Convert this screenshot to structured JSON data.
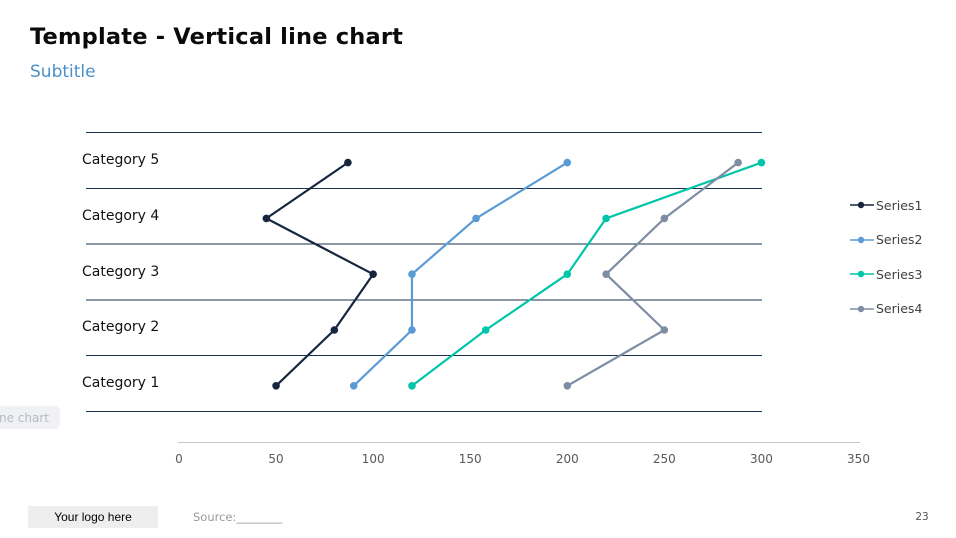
{
  "slide": {
    "title": "Template - Vertical line chart",
    "subtitle": "Subtitle",
    "tooltip_fragment": "ne chart",
    "footer": {
      "logo_label": "Your logo here",
      "source_label": "Source:________",
      "page_number": "23"
    }
  },
  "chart_data": {
    "type": "line",
    "title": "",
    "orientation": "vertical line chart: categories on Y axis (Category 1 at bottom), values on X axis",
    "categories": [
      "Category 1",
      "Category 2",
      "Category 3",
      "Category 4",
      "Category 5"
    ],
    "series": [
      {
        "name": "Series1",
        "color": "#16263f",
        "values": [
          50,
          80,
          100,
          45,
          87
        ]
      },
      {
        "name": "Series2",
        "color": "#5b9bd5",
        "values": [
          90,
          120,
          120,
          153,
          200
        ]
      },
      {
        "name": "Series3",
        "color": "#00c5a8",
        "values": [
          120,
          158,
          200,
          220,
          300
        ]
      },
      {
        "name": "Series4",
        "color": "#7e8da3",
        "values": [
          200,
          250,
          220,
          250,
          288
        ]
      }
    ],
    "value_axis": {
      "min": 0,
      "max": 350,
      "tick_step": 50,
      "ticks": [
        0,
        50,
        100,
        150,
        200,
        250,
        300,
        350
      ]
    },
    "legend": {
      "position": "right",
      "entries": [
        "Series1",
        "Series2",
        "Series3",
        "Series4"
      ]
    },
    "grid": true,
    "grid_color": "#1d2f4e",
    "axis_line_color": "#c6c6c6",
    "tick_label_color": "#595959"
  }
}
